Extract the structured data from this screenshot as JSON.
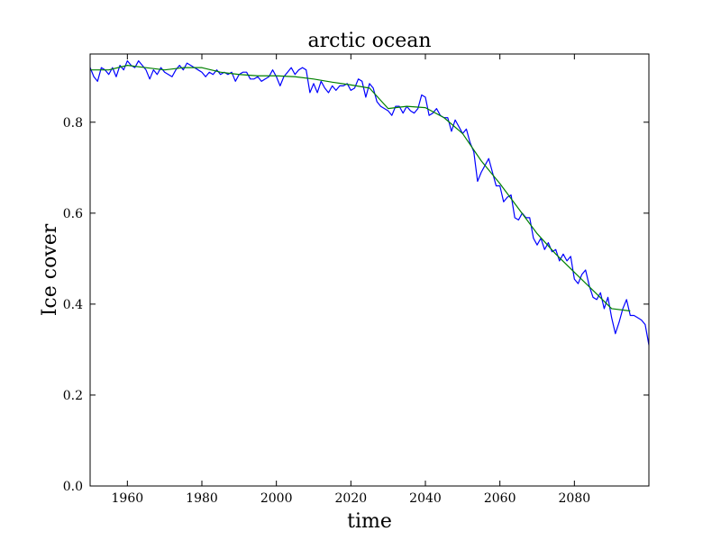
{
  "chart_data": {
    "type": "line",
    "title": "arctic ocean",
    "xlabel": "time",
    "ylabel": "Ice cover",
    "xlim": [
      1950,
      2100
    ],
    "ylim": [
      0.0,
      0.95
    ],
    "grid": false,
    "x_ticks": [
      1960,
      1980,
      2000,
      2020,
      2040,
      2060,
      2080
    ],
    "x_tick_labels": [
      "1960",
      "1980",
      "2000",
      "2020",
      "2040",
      "2060",
      "2080"
    ],
    "y_ticks": [
      0.0,
      0.2,
      0.4,
      0.6,
      0.8
    ],
    "y_tick_labels": [
      "0.0",
      "0.2",
      "0.4",
      "0.6",
      "0.8"
    ],
    "series": [
      {
        "color": "#0000ff",
        "x": [
          1950,
          1951,
          1952,
          1953,
          1954,
          1955,
          1956,
          1957,
          1958,
          1959,
          1960,
          1961,
          1962,
          1963,
          1964,
          1965,
          1966,
          1967,
          1968,
          1969,
          1970,
          1971,
          1972,
          1973,
          1974,
          1975,
          1976,
          1977,
          1978,
          1979,
          1980,
          1981,
          1982,
          1983,
          1984,
          1985,
          1986,
          1987,
          1988,
          1989,
          1990,
          1991,
          1992,
          1993,
          1994,
          1995,
          1996,
          1997,
          1998,
          1999,
          2000,
          2001,
          2002,
          2003,
          2004,
          2005,
          2006,
          2007,
          2008,
          2009,
          2010,
          2011,
          2012,
          2013,
          2014,
          2015,
          2016,
          2017,
          2018,
          2019,
          2020,
          2021,
          2022,
          2023,
          2024,
          2025,
          2026,
          2027,
          2028,
          2029,
          2030,
          2031,
          2032,
          2033,
          2034,
          2035,
          2036,
          2037,
          2038,
          2039,
          2040,
          2041,
          2042,
          2043,
          2044,
          2045,
          2046,
          2047,
          2048,
          2049,
          2050,
          2051,
          2052,
          2053,
          2054,
          2055,
          2056,
          2057,
          2058,
          2059,
          2060,
          2061,
          2062,
          2063,
          2064,
          2065,
          2066,
          2067,
          2068,
          2069,
          2070,
          2071,
          2072,
          2073,
          2074,
          2075,
          2076,
          2077,
          2078,
          2079,
          2080,
          2081,
          2082,
          2083,
          2084,
          2085,
          2086,
          2087,
          2088,
          2089,
          2090,
          2091,
          2092,
          2093,
          2094,
          2095,
          2096,
          2097,
          2098,
          2099,
          2100
        ],
        "y": [
          0.92,
          0.9,
          0.89,
          0.92,
          0.915,
          0.905,
          0.92,
          0.9,
          0.925,
          0.915,
          0.935,
          0.925,
          0.92,
          0.935,
          0.925,
          0.915,
          0.895,
          0.915,
          0.905,
          0.92,
          0.91,
          0.905,
          0.9,
          0.915,
          0.925,
          0.915,
          0.93,
          0.925,
          0.92,
          0.915,
          0.91,
          0.9,
          0.91,
          0.905,
          0.915,
          0.905,
          0.91,
          0.905,
          0.91,
          0.89,
          0.905,
          0.91,
          0.91,
          0.895,
          0.895,
          0.9,
          0.89,
          0.895,
          0.9,
          0.915,
          0.9,
          0.88,
          0.9,
          0.91,
          0.92,
          0.905,
          0.915,
          0.92,
          0.915,
          0.865,
          0.885,
          0.865,
          0.89,
          0.875,
          0.865,
          0.88,
          0.87,
          0.88,
          0.88,
          0.885,
          0.87,
          0.875,
          0.895,
          0.89,
          0.855,
          0.885,
          0.875,
          0.845,
          0.835,
          0.83,
          0.825,
          0.815,
          0.835,
          0.835,
          0.82,
          0.835,
          0.825,
          0.82,
          0.83,
          0.86,
          0.855,
          0.815,
          0.82,
          0.83,
          0.815,
          0.81,
          0.81,
          0.78,
          0.805,
          0.79,
          0.775,
          0.785,
          0.755,
          0.735,
          0.67,
          0.69,
          0.705,
          0.72,
          0.69,
          0.66,
          0.66,
          0.625,
          0.635,
          0.64,
          0.59,
          0.585,
          0.6,
          0.59,
          0.59,
          0.545,
          0.53,
          0.545,
          0.52,
          0.535,
          0.515,
          0.52,
          0.495,
          0.51,
          0.495,
          0.505,
          0.455,
          0.445,
          0.465,
          0.475,
          0.44,
          0.415,
          0.41,
          0.425,
          0.39,
          0.415,
          0.37,
          0.335,
          0.36,
          0.39,
          0.41,
          0.375,
          0.375,
          0.37,
          0.365,
          0.355,
          0.31
        ]
      },
      {
        "color": "#008000",
        "x": [
          1950,
          1955,
          1960,
          1965,
          1970,
          1975,
          1980,
          1985,
          1990,
          1995,
          2000,
          2005,
          2010,
          2015,
          2020,
          2025,
          2030,
          2035,
          2040,
          2045,
          2050,
          2055,
          2060,
          2065,
          2070,
          2075,
          2080,
          2085,
          2090,
          2095
        ],
        "y": [
          0.915,
          0.915,
          0.925,
          0.92,
          0.915,
          0.92,
          0.92,
          0.91,
          0.905,
          0.902,
          0.902,
          0.9,
          0.895,
          0.888,
          0.882,
          0.875,
          0.83,
          0.835,
          0.832,
          0.81,
          0.775,
          0.715,
          0.665,
          0.61,
          0.555,
          0.51,
          0.47,
          0.43,
          0.39,
          0.385
        ]
      }
    ]
  }
}
